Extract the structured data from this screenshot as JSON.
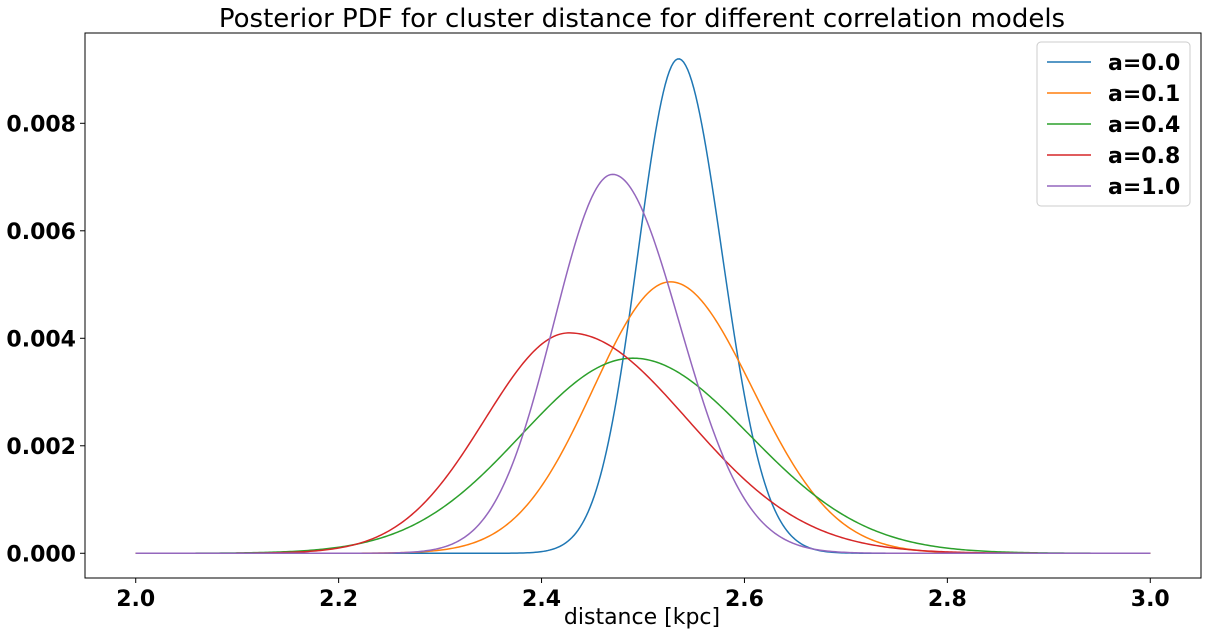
{
  "chart_data": {
    "type": "line",
    "title": "Posterior PDF for cluster distance for different correlation models",
    "xlabel": "distance [kpc]",
    "ylabel": "",
    "xlim": [
      1.95,
      3.05
    ],
    "ylim": [
      -0.00046,
      0.00968
    ],
    "xticks": [
      2.0,
      2.2,
      2.4,
      2.6,
      2.8,
      3.0
    ],
    "xtick_labels": [
      "2.0",
      "2.2",
      "2.4",
      "2.6",
      "2.8",
      "3.0"
    ],
    "yticks": [
      0.0,
      0.002,
      0.004,
      0.006,
      0.008
    ],
    "ytick_labels": [
      "0.000",
      "0.002",
      "0.004",
      "0.006",
      "0.008"
    ],
    "grid": false,
    "legend_position": "top-right",
    "x_range": [
      2.0,
      3.0
    ],
    "series": [
      {
        "name": "a=0.0",
        "color": "#1f77b4",
        "peak_x": 2.535,
        "peak_y": 0.0092,
        "sigma_left": 0.04,
        "sigma_right": 0.043
      },
      {
        "name": "a=0.1",
        "color": "#ff7f0e",
        "peak_x": 2.527,
        "peak_y": 0.00505,
        "sigma_left": 0.076,
        "sigma_right": 0.081
      },
      {
        "name": "a=0.4",
        "color": "#2ca02c",
        "peak_x": 2.49,
        "peak_y": 0.00363,
        "sigma_left": 0.11,
        "sigma_right": 0.115
      },
      {
        "name": "a=0.8",
        "color": "#d62728",
        "peak_x": 2.427,
        "peak_y": 0.0041,
        "sigma_left": 0.083,
        "sigma_right": 0.117
      },
      {
        "name": "a=1.0",
        "color": "#9467bd",
        "peak_x": 2.47,
        "peak_y": 0.00705,
        "sigma_left": 0.058,
        "sigma_right": 0.066
      }
    ]
  }
}
